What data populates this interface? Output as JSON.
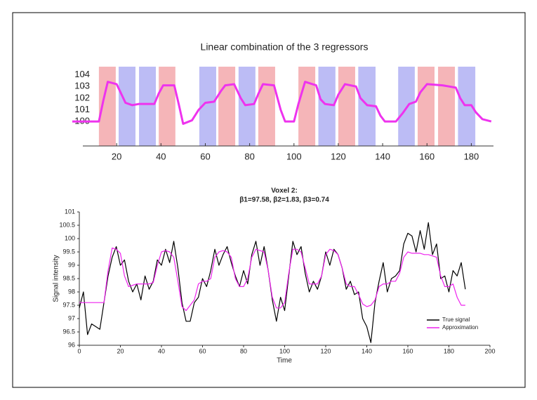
{
  "chart_data": [
    {
      "type": "line",
      "title": "Linear combination of the 3 regressors",
      "xlim": [
        0,
        190
      ],
      "ylim": [
        97.9,
        104.7
      ],
      "xticks": [
        20,
        40,
        60,
        80,
        100,
        120,
        140,
        160,
        180
      ],
      "yticks": [
        100,
        101,
        102,
        103,
        104
      ],
      "regions": [
        {
          "start": 12,
          "end": 19.6,
          "color": "#f5b5b8"
        },
        {
          "start": 20.9,
          "end": 28.5,
          "color": "#bcbcf5"
        },
        {
          "start": 30.1,
          "end": 37.7,
          "color": "#bcbcf5"
        },
        {
          "start": 39,
          "end": 46.5,
          "color": "#f5b5b8"
        },
        {
          "start": 57.3,
          "end": 64.9,
          "color": "#bcbcf5"
        },
        {
          "start": 65.9,
          "end": 73.5,
          "color": "#f5b5b8"
        },
        {
          "start": 75,
          "end": 82.6,
          "color": "#bcbcf5"
        },
        {
          "start": 83.9,
          "end": 91.5,
          "color": "#f5b5b8"
        },
        {
          "start": 102,
          "end": 109.6,
          "color": "#f5b5b8"
        },
        {
          "start": 111,
          "end": 118.7,
          "color": "#bcbcf5"
        },
        {
          "start": 120,
          "end": 127.6,
          "color": "#f5b5b8"
        },
        {
          "start": 129,
          "end": 136.8,
          "color": "#bcbcf5"
        },
        {
          "start": 147,
          "end": 154.5,
          "color": "#bcbcf5"
        },
        {
          "start": 155.8,
          "end": 163.4,
          "color": "#f5b5b8"
        },
        {
          "start": 165,
          "end": 172.6,
          "color": "#f5b5b8"
        },
        {
          "start": 174,
          "end": 181.8,
          "color": "#bcbcf5"
        }
      ],
      "x": [
        0,
        12,
        14,
        16,
        20,
        24,
        27,
        30,
        34,
        37,
        39,
        41,
        46,
        48,
        50,
        54,
        57,
        60,
        64,
        67,
        69,
        73,
        76,
        78,
        82,
        84,
        86,
        91,
        94,
        96,
        100,
        102,
        105,
        110,
        112,
        114,
        118,
        120,
        123,
        128,
        130,
        133,
        137,
        139,
        141,
        146,
        149,
        152,
        155,
        157,
        160,
        167,
        173,
        175,
        177,
        180,
        182,
        185,
        189
      ],
      "series": [
        {
          "color": "#ee33ee",
          "values": [
            100,
            100,
            101.8,
            103.4,
            103.2,
            101.6,
            101.4,
            101.5,
            101.5,
            101.5,
            102.4,
            103.1,
            103.1,
            101.5,
            99.8,
            100.1,
            101.0,
            101.6,
            101.7,
            102.6,
            103.1,
            103.2,
            102.0,
            101.4,
            101.5,
            102.4,
            103.2,
            103.1,
            101.0,
            100.0,
            100.0,
            101.5,
            103.4,
            103.1,
            101.9,
            101.5,
            101.4,
            102.3,
            103.2,
            103.0,
            102.0,
            101.4,
            101.3,
            100.5,
            100.0,
            100.0,
            100.7,
            101.5,
            101.7,
            102.5,
            103.2,
            103.1,
            102.9,
            102.0,
            101.4,
            101.4,
            100.8,
            100.2,
            100.0
          ]
        }
      ]
    },
    {
      "type": "line",
      "title": "Voxel 2:",
      "subtitle": "β1=97.58, β2=1.83, β3=0.74",
      "xlabel": "Time",
      "ylabel": "Signal intensity",
      "xlim": [
        0,
        200
      ],
      "ylim": [
        96,
        101
      ],
      "xticks": [
        0,
        20,
        40,
        60,
        80,
        100,
        120,
        140,
        160,
        180,
        200
      ],
      "yticks": [
        96,
        96.5,
        97,
        97.5,
        98,
        98.5,
        99,
        99.5,
        100,
        100.5,
        101
      ],
      "legend": "lower right",
      "x": [
        0,
        2,
        4,
        6,
        8,
        10,
        12,
        14,
        16,
        18,
        20,
        22,
        24,
        26,
        28,
        30,
        32,
        34,
        36,
        38,
        40,
        42,
        44,
        46,
        48,
        50,
        52,
        54,
        56,
        58,
        60,
        62,
        64,
        66,
        68,
        70,
        72,
        74,
        76,
        78,
        80,
        82,
        84,
        86,
        88,
        90,
        92,
        94,
        96,
        98,
        100,
        102,
        104,
        106,
        108,
        110,
        112,
        114,
        116,
        118,
        120,
        122,
        124,
        126,
        128,
        130,
        132,
        134,
        136,
        138,
        140,
        142,
        144,
        146,
        148,
        150,
        152,
        154,
        156,
        158,
        160,
        162,
        164,
        166,
        168,
        170,
        172,
        174,
        176,
        178,
        180,
        182,
        184,
        186,
        188
      ],
      "series": [
        {
          "name": "True signal",
          "color": "#000000",
          "values": [
            97.4,
            98.0,
            96.4,
            96.8,
            96.7,
            96.6,
            97.6,
            98.6,
            99.3,
            99.7,
            99.0,
            99.2,
            98.4,
            98.0,
            98.3,
            97.7,
            98.6,
            98.1,
            98.4,
            99.2,
            99.0,
            99.6,
            99.1,
            99.9,
            98.9,
            97.6,
            96.9,
            96.9,
            97.6,
            97.8,
            98.5,
            98.2,
            98.8,
            99.6,
            99.0,
            99.4,
            99.7,
            99.1,
            98.6,
            98.2,
            98.8,
            98.3,
            99.4,
            99.9,
            99.0,
            99.7,
            98.8,
            97.7,
            96.9,
            97.8,
            97.3,
            98.6,
            99.9,
            99.4,
            99.7,
            98.7,
            98.0,
            98.4,
            98.1,
            98.6,
            99.5,
            99.0,
            99.6,
            99.4,
            98.9,
            98.1,
            98.4,
            97.9,
            98.0,
            97.0,
            96.7,
            96.1,
            97.6,
            98.4,
            99.1,
            98.0,
            98.5,
            98.6,
            98.8,
            99.8,
            100.2,
            100.1,
            99.5,
            100.3,
            99.6,
            100.6,
            99.4,
            99.8,
            98.5,
            98.6,
            98.0,
            98.8,
            98.6,
            99.1,
            98.1
          ]
        },
        {
          "name": "Approximation",
          "color": "#ee22ee",
          "values": [
            97.6,
            97.6,
            97.6,
            97.6,
            97.6,
            97.6,
            97.6,
            98.8,
            99.65,
            99.6,
            99.45,
            98.6,
            98.2,
            98.25,
            98.3,
            98.3,
            98.3,
            98.3,
            98.35,
            99.0,
            99.5,
            99.55,
            99.5,
            99.3,
            98.4,
            97.45,
            97.3,
            97.5,
            97.7,
            98.3,
            98.4,
            98.4,
            98.5,
            99.3,
            99.5,
            99.55,
            99.5,
            99.3,
            98.5,
            98.2,
            98.2,
            98.5,
            99.3,
            99.6,
            99.55,
            99.5,
            98.8,
            97.8,
            97.4,
            97.4,
            97.6,
            98.7,
            99.6,
            99.6,
            99.5,
            98.9,
            98.3,
            98.3,
            98.3,
            98.6,
            99.4,
            99.6,
            99.55,
            99.4,
            98.9,
            98.3,
            98.2,
            98.2,
            97.9,
            97.55,
            97.45,
            97.5,
            97.7,
            98.2,
            98.3,
            98.3,
            98.4,
            98.4,
            98.7,
            99.3,
            99.5,
            99.45,
            99.45,
            99.45,
            99.4,
            99.4,
            99.35,
            99.3,
            98.6,
            98.2,
            98.2,
            98.3,
            97.8,
            97.5,
            97.5
          ]
        }
      ]
    }
  ]
}
